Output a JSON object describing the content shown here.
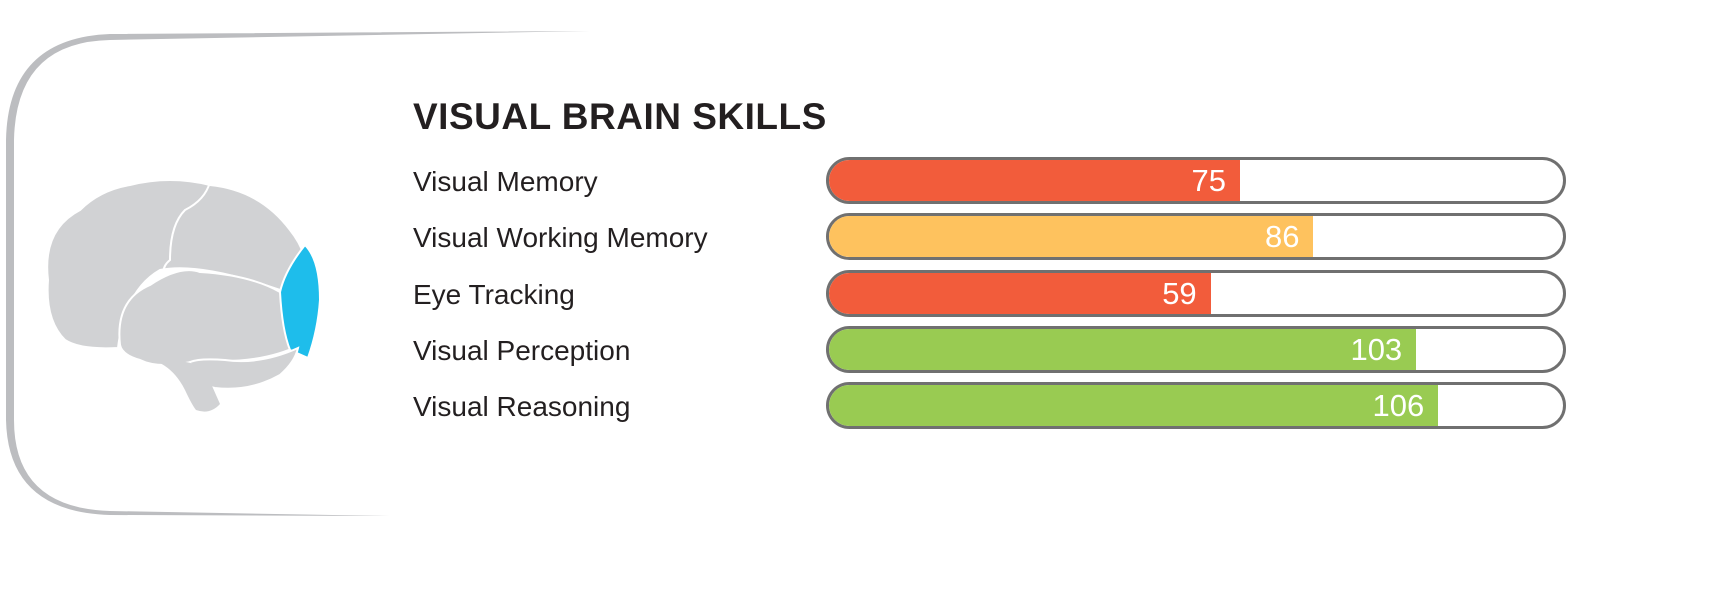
{
  "chart_data": {
    "type": "bar",
    "orientation": "horizontal",
    "title": "VISUAL BRAIN SKILLS",
    "categories": [
      "Visual Memory",
      "Visual Working Memory",
      "Eye Tracking",
      "Visual Perception",
      "Visual Reasoning"
    ],
    "values": [
      75,
      86,
      59,
      103,
      106
    ],
    "fill_fraction": [
      0.56,
      0.66,
      0.52,
      0.8,
      0.83
    ],
    "bar_colors": [
      "#f25c3b",
      "#fec25e",
      "#f25c3b",
      "#99cb52",
      "#99cb52"
    ],
    "data_labels": [
      "75",
      "86",
      "59",
      "103",
      "106"
    ],
    "grid": false,
    "legend": "none"
  },
  "colors": {
    "frame": "#bcbdc0",
    "brain": "#d1d2d4",
    "brain_highlight": "#1ebdeb",
    "bar_border": "#707070",
    "text": "#231f20"
  },
  "icon": "brain-icon-occipital-lobe-highlighted"
}
